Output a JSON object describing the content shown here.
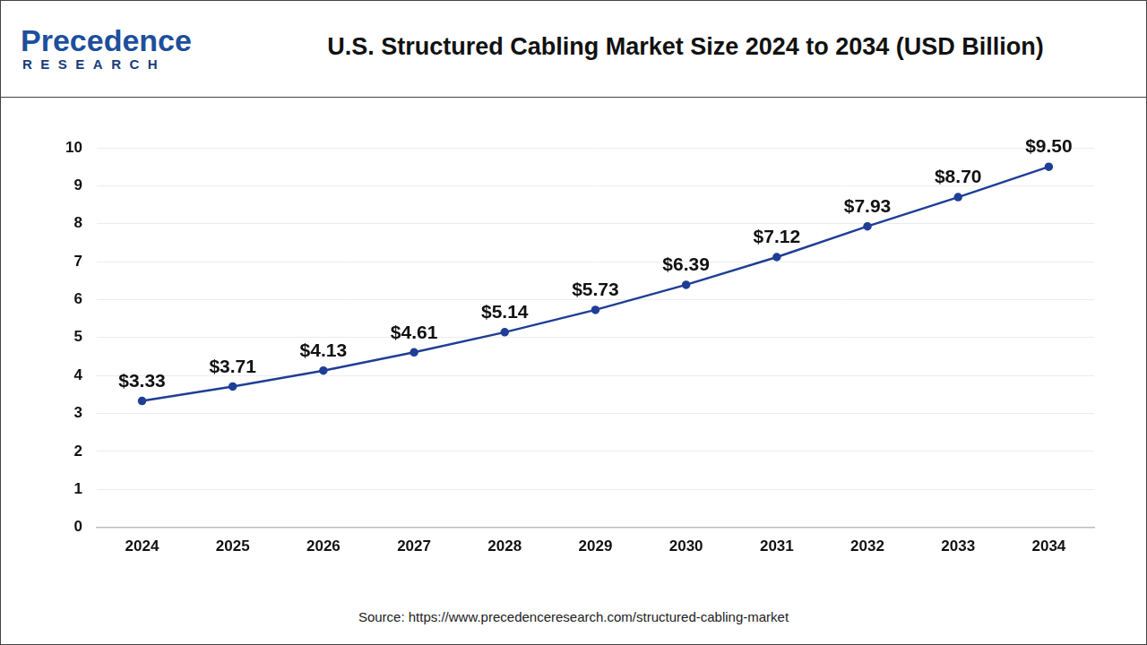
{
  "header": {
    "logo": {
      "name": "Precedence",
      "sub": "RESEARCH"
    }
  },
  "chart_data": {
    "type": "line",
    "title": "U.S. Structured Cabling Market Size 2024 to 2034 (USD Billion)",
    "categories": [
      "2024",
      "2025",
      "2026",
      "2027",
      "2028",
      "2029",
      "2030",
      "2031",
      "2032",
      "2033",
      "2034"
    ],
    "values": [
      3.33,
      3.71,
      4.13,
      4.61,
      5.14,
      5.73,
      6.39,
      7.12,
      7.93,
      8.7,
      9.5
    ],
    "value_labels": [
      "$3.33",
      "$3.71",
      "$4.13",
      "$4.61",
      "$5.14",
      "$5.73",
      "$6.39",
      "$7.12",
      "$7.93",
      "$8.70",
      "$9.50"
    ],
    "color": "#1f3e96",
    "marker": "circle",
    "ylim": [
      0,
      10
    ],
    "yticks": [
      0,
      1,
      2,
      3,
      4,
      5,
      6,
      7,
      8,
      9,
      10
    ],
    "grid": true,
    "data_labels": true
  },
  "footer": {
    "source": "Source: https://www.precedenceresearch.com/structured-cabling-market"
  }
}
